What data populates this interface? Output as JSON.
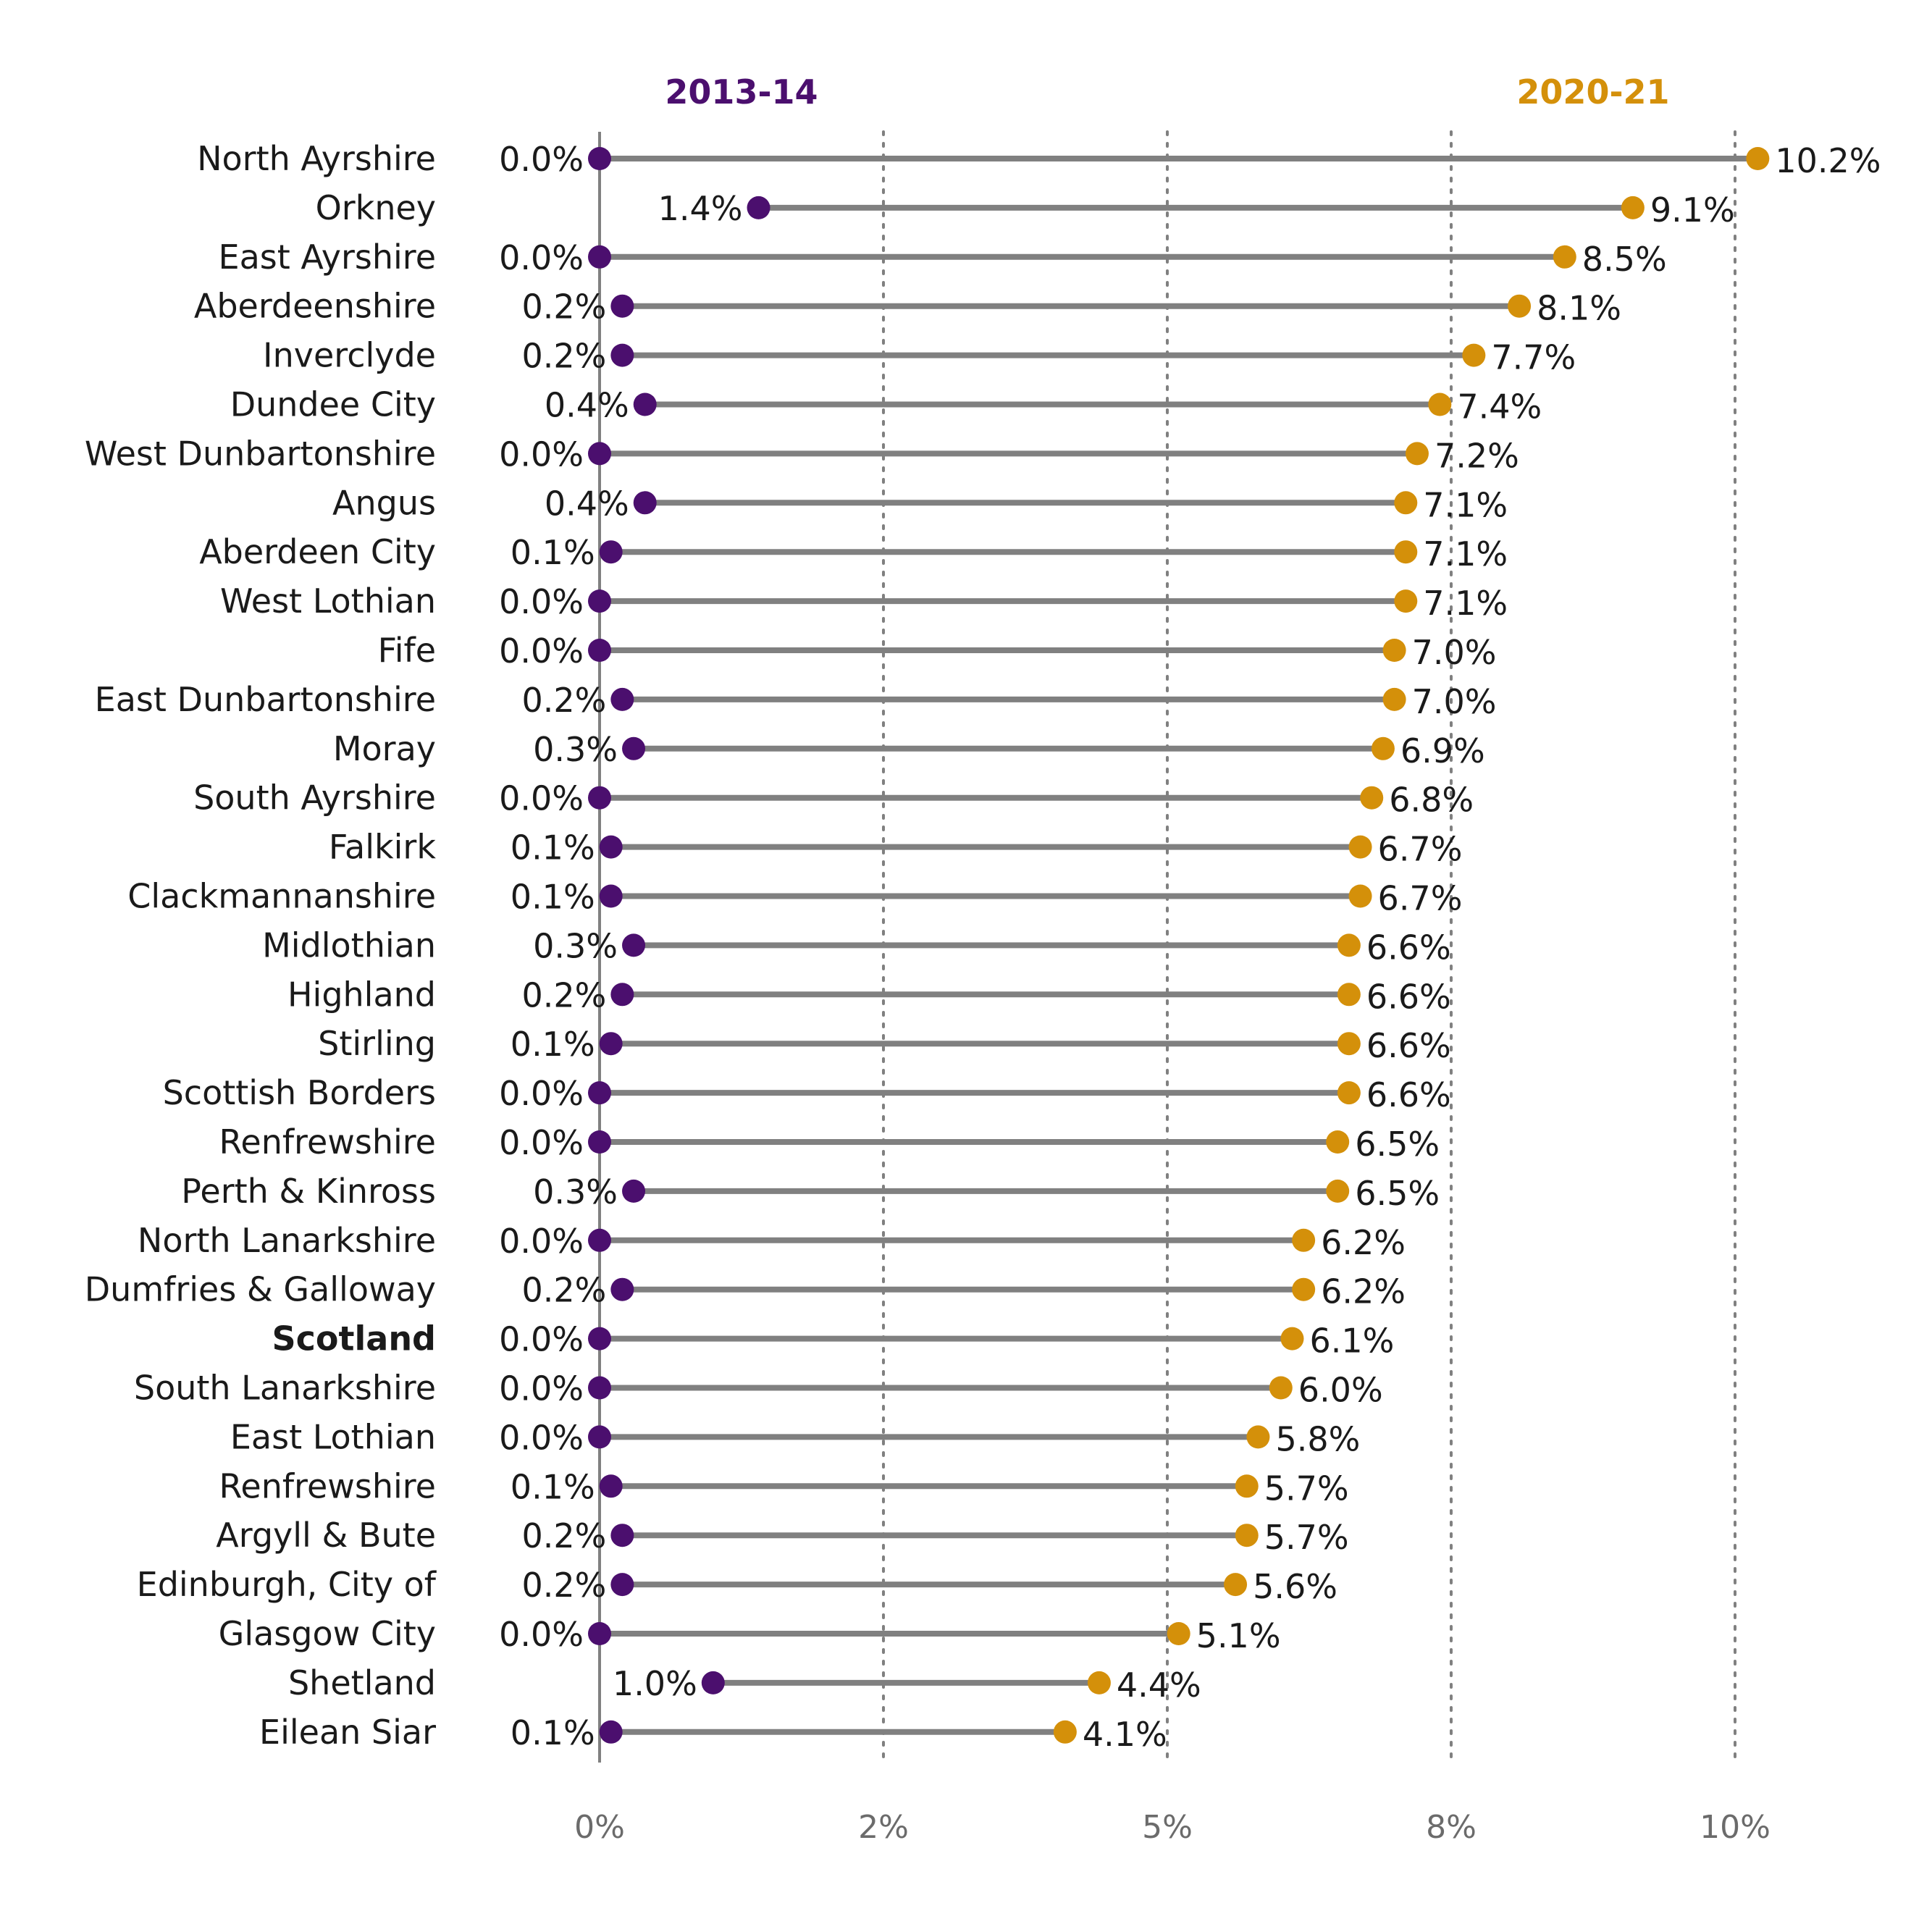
{
  "chart_data": {
    "type": "dot-plot",
    "series": [
      {
        "name": "2013-14",
        "color": "#4b0f6e",
        "values": [
          0.0,
          1.4,
          0.0,
          0.2,
          0.2,
          0.4,
          0.0,
          0.4,
          0.1,
          0.0,
          0.0,
          0.2,
          0.3,
          0.0,
          0.1,
          0.1,
          0.3,
          0.2,
          0.1,
          0.0,
          0.0,
          0.3,
          0.0,
          0.2,
          0.0,
          0.0,
          0.0,
          0.1,
          0.2,
          0.2,
          0.0,
          1.0,
          0.1
        ],
        "labels": [
          "0.0%",
          "1.4%",
          "0.0%",
          "0.2%",
          "0.2%",
          "0.4%",
          "0.0%",
          "0.4%",
          "0.1%",
          "0.0%",
          "0.0%",
          "0.2%",
          "0.3%",
          "0.0%",
          "0.1%",
          "0.1%",
          "0.3%",
          "0.2%",
          "0.1%",
          "0.0%",
          "0.0%",
          "0.3%",
          "0.0%",
          "0.2%",
          "0.0%",
          "0.0%",
          "0.0%",
          "0.1%",
          "0.2%",
          "0.2%",
          "0.0%",
          "1.0%",
          "0.1%"
        ]
      },
      {
        "name": "2020-21",
        "color": "#d4900a",
        "values": [
          10.2,
          9.1,
          8.5,
          8.1,
          7.7,
          7.4,
          7.2,
          7.1,
          7.1,
          7.1,
          7.0,
          7.0,
          6.9,
          6.8,
          6.7,
          6.7,
          6.6,
          6.6,
          6.6,
          6.6,
          6.5,
          6.5,
          6.2,
          6.2,
          6.1,
          6.0,
          5.8,
          5.7,
          5.7,
          5.6,
          5.1,
          4.4,
          4.1
        ],
        "labels": [
          "10.2%",
          "9.1%",
          "8.5%",
          "8.1%",
          "7.7%",
          "7.4%",
          "7.2%",
          "7.1%",
          "7.1%",
          "7.1%",
          "7.0%",
          "7.0%",
          "6.9%",
          "6.8%",
          "6.7%",
          "6.7%",
          "6.6%",
          "6.6%",
          "6.6%",
          "6.6%",
          "6.5%",
          "6.5%",
          "6.2%",
          "6.2%",
          "6.1%",
          "6.0%",
          "5.8%",
          "5.7%",
          "5.7%",
          "5.6%",
          "5.1%",
          "4.4%",
          "4.1%"
        ]
      }
    ],
    "categories": [
      "North Ayrshire",
      "Orkney",
      "East Ayrshire",
      "Aberdeenshire",
      "Inverclyde",
      "Dundee City",
      "West Dunbartonshire",
      "Angus",
      "Aberdeen City",
      "West Lothian",
      "Fife",
      "East Dunbartonshire",
      "Moray",
      "South Ayrshire",
      "Falkirk",
      "Clackmannanshire",
      "Midlothian",
      "Highland",
      "Stirling",
      "Scottish Borders",
      "Renfrewshire",
      "Perth & Kinross",
      "North Lanarkshire",
      "Dumfries & Galloway",
      "Scotland",
      "South Lanarkshire",
      "East Lothian",
      "Renfrewshire",
      "Argyll & Bute",
      "Edinburgh, City of",
      "Glasgow City",
      "Shetland",
      "Eilean Siar"
    ],
    "highlight": "Scotland",
    "x_ticks": [
      0,
      2.5,
      5,
      7.5,
      10
    ],
    "x_tick_labels": [
      "0%",
      "2%",
      "5%",
      "8%",
      "10%"
    ],
    "xlim": [
      0,
      10
    ],
    "grid": "vertical dotted",
    "line_color": "#808080"
  }
}
